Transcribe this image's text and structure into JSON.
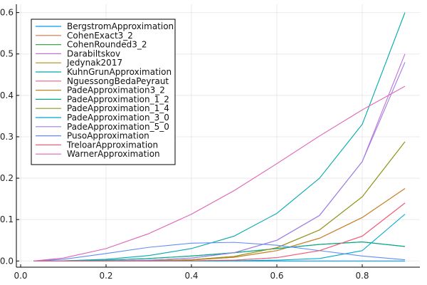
{
  "chart_data": {
    "type": "line",
    "title": "",
    "xlabel": "",
    "ylabel": "",
    "xlim": [
      -0.01,
      0.935
    ],
    "ylim": [
      -0.015,
      0.62
    ],
    "xticks": [
      0.0,
      0.2,
      0.4,
      0.6,
      0.8
    ],
    "yticks": [
      0.0,
      0.1,
      0.2,
      0.3,
      0.4,
      0.5,
      0.6
    ],
    "xtick_labels": [
      "0.0",
      "0.2",
      "0.4",
      "0.6",
      "0.8"
    ],
    "ytick_labels": [
      "0.0",
      "0.1",
      "0.2",
      "0.3",
      "0.4",
      "0.5",
      "0.6"
    ],
    "grid": true,
    "legend_position": "top-left",
    "x": [
      0.03,
      0.1,
      0.2,
      0.3,
      0.4,
      0.5,
      0.6,
      0.7,
      0.8,
      0.9
    ],
    "series": [
      {
        "name": "BergstromApproximation",
        "color": "#009AFA",
        "values": [
          0.0,
          0.0,
          0.0,
          0.0,
          0.0,
          0.0,
          0.0,
          0.0,
          0.0,
          0.0
        ]
      },
      {
        "name": "CohenExact3_2",
        "color": "#E36F47",
        "values": [
          0.0,
          0.0,
          0.0,
          0.0005,
          0.0025,
          0.009,
          0.025,
          0.055,
          0.105,
          0.175
        ]
      },
      {
        "name": "CohenRounded3_2",
        "color": "#3EA44E",
        "values": [
          0.0,
          0.0005,
          0.002,
          0.006,
          0.012,
          0.02,
          0.03,
          0.04,
          0.046,
          0.035
        ]
      },
      {
        "name": "Darabiltskov",
        "color": "#C371D2",
        "values": [
          0.0,
          0.0,
          0.0005,
          0.002,
          0.007,
          0.02,
          0.05,
          0.11,
          0.24,
          0.5
        ]
      },
      {
        "name": "Jedynak2017",
        "color": "#AC8E18",
        "values": [
          0.0,
          0.0,
          0.0,
          0.0005,
          0.003,
          0.011,
          0.032,
          0.075,
          0.155,
          0.288
        ]
      },
      {
        "name": "KuhnGrunApproximation",
        "color": "#00A9AD",
        "values": [
          0.0,
          0.0005,
          0.004,
          0.013,
          0.03,
          0.06,
          0.115,
          0.2,
          0.33,
          0.6
        ]
      },
      {
        "name": "NguessongBedaPeyraut",
        "color": "#ED5E93",
        "values": [
          0.0,
          0.0,
          0.0,
          0.0,
          0.0005,
          0.002,
          0.008,
          0.025,
          0.06,
          0.14
        ]
      },
      {
        "name": "PadeApproximation3_2",
        "color": "#C68225",
        "values": [
          0.0,
          0.0,
          0.0,
          0.0005,
          0.0025,
          0.009,
          0.025,
          0.055,
          0.105,
          0.175
        ]
      },
      {
        "name": "PadeApproximation_1_2",
        "color": "#00A98D",
        "values": [
          0.0,
          0.0005,
          0.002,
          0.006,
          0.012,
          0.02,
          0.03,
          0.04,
          0.046,
          0.035
        ]
      },
      {
        "name": "PadeApproximation_1_4",
        "color": "#8E971E",
        "values": [
          0.0,
          0.0,
          0.0,
          0.0005,
          0.003,
          0.011,
          0.032,
          0.075,
          0.155,
          0.288
        ]
      },
      {
        "name": "PadeApproximation_3_0",
        "color": "#00A8CB",
        "values": [
          0.0,
          0.0,
          0.0,
          0.0,
          0.0,
          0.0005,
          0.002,
          0.006,
          0.025,
          0.113
        ]
      },
      {
        "name": "PadeApproximation_5_0",
        "color": "#9B7FE9",
        "values": [
          0.0,
          0.0,
          0.0005,
          0.002,
          0.007,
          0.02,
          0.05,
          0.11,
          0.24,
          0.48
        ]
      },
      {
        "name": "PusoApproximation",
        "color": "#608CF6",
        "values": [
          0.0,
          0.004,
          0.018,
          0.033,
          0.043,
          0.045,
          0.038,
          0.025,
          0.012,
          0.003
        ]
      },
      {
        "name": "TreloarApproximation",
        "color": "#F05F73",
        "values": [
          0.0,
          0.0,
          0.0,
          0.0,
          0.0005,
          0.002,
          0.008,
          0.025,
          0.06,
          0.14
        ]
      },
      {
        "name": "WarnerApproximation",
        "color": "#DD64B5",
        "values": [
          0.0,
          0.007,
          0.03,
          0.066,
          0.113,
          0.17,
          0.235,
          0.302,
          0.365,
          0.422
        ]
      }
    ]
  }
}
